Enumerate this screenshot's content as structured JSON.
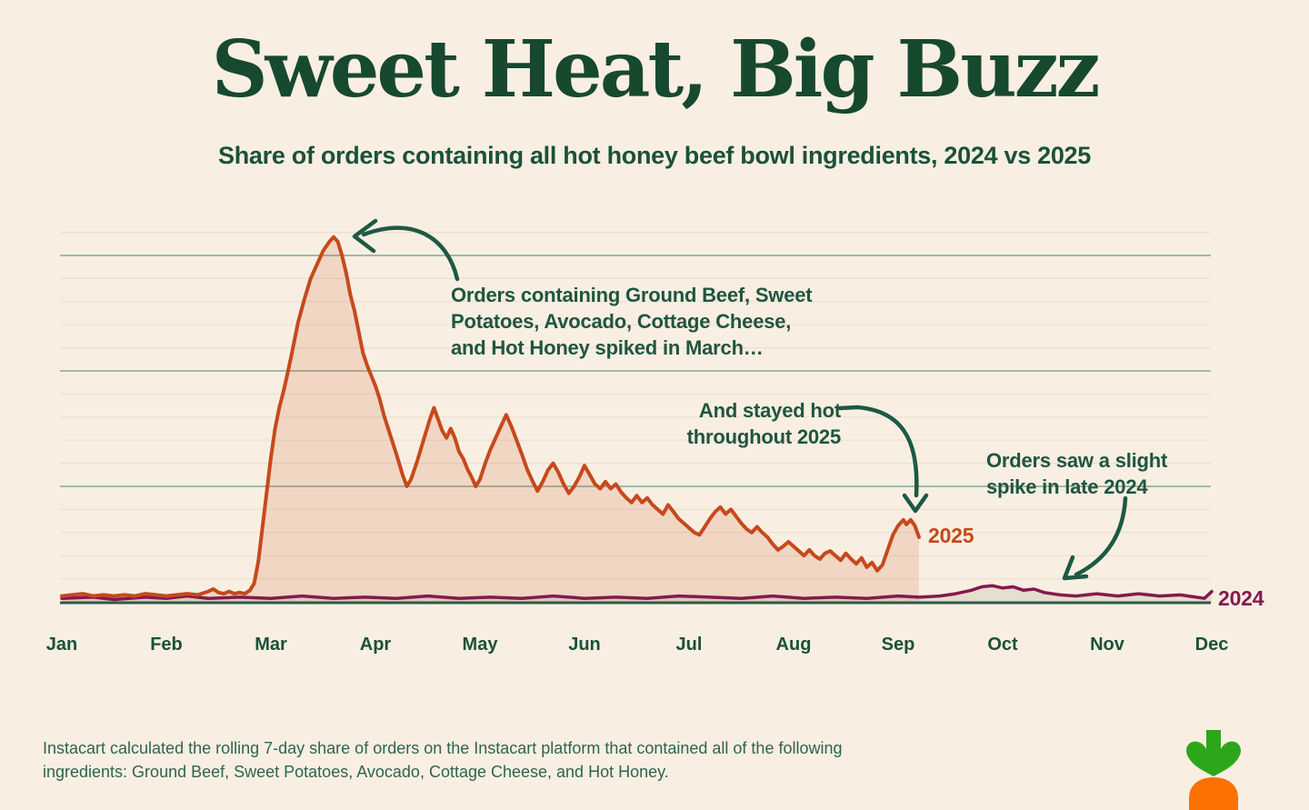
{
  "page": {
    "background": "#F8EFE2"
  },
  "header": {
    "title": "Sweet Heat, Big Buzz",
    "subtitle": "Share of orders containing all hot honey beef bowl ingredients, 2024 vs 2025"
  },
  "chart_data": {
    "type": "area",
    "title": "Share of orders containing all hot honey beef bowl ingredients, 2024 vs 2025",
    "x_axis": {
      "categories": [
        "Jan",
        "Feb",
        "Mar",
        "Apr",
        "May",
        "Jun",
        "Jul",
        "Aug",
        "Sep",
        "Oct",
        "Nov",
        "Dec"
      ],
      "range_months": [
        0,
        11
      ]
    },
    "y_axis": {
      "labels_shown": false,
      "units": "relative order share (axis unlabeled); 1.0 = one major gridline division",
      "max": 3.2,
      "minor_gridline_step": 0.2,
      "major_gridlines_units": [
        1,
        2,
        3
      ]
    },
    "grid": {
      "major_color": "#A2B9A9",
      "minor_color": "#ECE0CF",
      "baseline_color": "#2D5B49"
    },
    "legend_position": "inline-end-of-line labels",
    "series": [
      {
        "name": "2025",
        "label": "2025",
        "color": "#C6491D",
        "fill": "rgba(198,73,29,0.15)",
        "stroke_width": 4,
        "points": [
          [
            0,
            0.05
          ],
          [
            0.1,
            0.06
          ],
          [
            0.2,
            0.07
          ],
          [
            0.3,
            0.05
          ],
          [
            0.4,
            0.06
          ],
          [
            0.5,
            0.05
          ],
          [
            0.6,
            0.06
          ],
          [
            0.7,
            0.05
          ],
          [
            0.8,
            0.07
          ],
          [
            0.9,
            0.06
          ],
          [
            1.0,
            0.05
          ],
          [
            1.1,
            0.06
          ],
          [
            1.2,
            0.07
          ],
          [
            1.3,
            0.06
          ],
          [
            1.4,
            0.09
          ],
          [
            1.45,
            0.11
          ],
          [
            1.5,
            0.08
          ],
          [
            1.55,
            0.07
          ],
          [
            1.6,
            0.09
          ],
          [
            1.65,
            0.07
          ],
          [
            1.7,
            0.08
          ],
          [
            1.75,
            0.07
          ],
          [
            1.8,
            0.1
          ],
          [
            1.84,
            0.16
          ],
          [
            1.88,
            0.35
          ],
          [
            1.92,
            0.65
          ],
          [
            1.96,
            0.95
          ],
          [
            2.0,
            1.25
          ],
          [
            2.04,
            1.5
          ],
          [
            2.08,
            1.68
          ],
          [
            2.12,
            1.82
          ],
          [
            2.16,
            1.98
          ],
          [
            2.2,
            2.15
          ],
          [
            2.26,
            2.42
          ],
          [
            2.32,
            2.62
          ],
          [
            2.38,
            2.8
          ],
          [
            2.44,
            2.92
          ],
          [
            2.5,
            3.04
          ],
          [
            2.56,
            3.12
          ],
          [
            2.6,
            3.16
          ],
          [
            2.64,
            3.12
          ],
          [
            2.68,
            3.0
          ],
          [
            2.72,
            2.85
          ],
          [
            2.76,
            2.66
          ],
          [
            2.8,
            2.52
          ],
          [
            2.84,
            2.34
          ],
          [
            2.88,
            2.16
          ],
          [
            2.92,
            2.05
          ],
          [
            2.96,
            1.96
          ],
          [
            3.0,
            1.87
          ],
          [
            3.04,
            1.76
          ],
          [
            3.08,
            1.62
          ],
          [
            3.14,
            1.45
          ],
          [
            3.2,
            1.28
          ],
          [
            3.26,
            1.1
          ],
          [
            3.3,
            1.0
          ],
          [
            3.34,
            1.06
          ],
          [
            3.4,
            1.22
          ],
          [
            3.46,
            1.4
          ],
          [
            3.52,
            1.58
          ],
          [
            3.56,
            1.68
          ],
          [
            3.6,
            1.58
          ],
          [
            3.64,
            1.48
          ],
          [
            3.68,
            1.42
          ],
          [
            3.72,
            1.5
          ],
          [
            3.76,
            1.42
          ],
          [
            3.8,
            1.3
          ],
          [
            3.84,
            1.24
          ],
          [
            3.88,
            1.15
          ],
          [
            3.92,
            1.08
          ],
          [
            3.96,
            1.0
          ],
          [
            4.0,
            1.06
          ],
          [
            4.05,
            1.2
          ],
          [
            4.1,
            1.32
          ],
          [
            4.15,
            1.42
          ],
          [
            4.2,
            1.52
          ],
          [
            4.25,
            1.62
          ],
          [
            4.3,
            1.52
          ],
          [
            4.35,
            1.4
          ],
          [
            4.4,
            1.28
          ],
          [
            4.45,
            1.15
          ],
          [
            4.5,
            1.05
          ],
          [
            4.55,
            0.96
          ],
          [
            4.6,
            1.04
          ],
          [
            4.65,
            1.14
          ],
          [
            4.7,
            1.2
          ],
          [
            4.75,
            1.12
          ],
          [
            4.8,
            1.02
          ],
          [
            4.85,
            0.94
          ],
          [
            4.9,
            1.0
          ],
          [
            4.95,
            1.08
          ],
          [
            5.0,
            1.18
          ],
          [
            5.05,
            1.1
          ],
          [
            5.1,
            1.02
          ],
          [
            5.15,
            0.98
          ],
          [
            5.2,
            1.04
          ],
          [
            5.25,
            0.98
          ],
          [
            5.3,
            1.02
          ],
          [
            5.35,
            0.95
          ],
          [
            5.4,
            0.9
          ],
          [
            5.45,
            0.86
          ],
          [
            5.5,
            0.92
          ],
          [
            5.55,
            0.86
          ],
          [
            5.6,
            0.9
          ],
          [
            5.65,
            0.84
          ],
          [
            5.7,
            0.8
          ],
          [
            5.75,
            0.76
          ],
          [
            5.8,
            0.84
          ],
          [
            5.85,
            0.78
          ],
          [
            5.9,
            0.72
          ],
          [
            5.95,
            0.68
          ],
          [
            6.0,
            0.64
          ],
          [
            6.05,
            0.6
          ],
          [
            6.1,
            0.58
          ],
          [
            6.15,
            0.65
          ],
          [
            6.2,
            0.72
          ],
          [
            6.25,
            0.78
          ],
          [
            6.3,
            0.82
          ],
          [
            6.35,
            0.76
          ],
          [
            6.4,
            0.8
          ],
          [
            6.45,
            0.74
          ],
          [
            6.5,
            0.68
          ],
          [
            6.55,
            0.63
          ],
          [
            6.6,
            0.6
          ],
          [
            6.65,
            0.65
          ],
          [
            6.7,
            0.6
          ],
          [
            6.75,
            0.56
          ],
          [
            6.8,
            0.5
          ],
          [
            6.85,
            0.45
          ],
          [
            6.9,
            0.48
          ],
          [
            6.95,
            0.52
          ],
          [
            7.0,
            0.48
          ],
          [
            7.05,
            0.44
          ],
          [
            7.1,
            0.4
          ],
          [
            7.15,
            0.45
          ],
          [
            7.2,
            0.4
          ],
          [
            7.25,
            0.37
          ],
          [
            7.3,
            0.42
          ],
          [
            7.35,
            0.44
          ],
          [
            7.4,
            0.4
          ],
          [
            7.45,
            0.36
          ],
          [
            7.5,
            0.42
          ],
          [
            7.55,
            0.37
          ],
          [
            7.6,
            0.33
          ],
          [
            7.65,
            0.38
          ],
          [
            7.7,
            0.3
          ],
          [
            7.75,
            0.34
          ],
          [
            7.8,
            0.27
          ],
          [
            7.85,
            0.32
          ],
          [
            7.9,
            0.45
          ],
          [
            7.95,
            0.58
          ],
          [
            8.0,
            0.66
          ],
          [
            8.05,
            0.71
          ],
          [
            8.08,
            0.67
          ],
          [
            8.12,
            0.71
          ],
          [
            8.16,
            0.66
          ],
          [
            8.2,
            0.56
          ]
        ]
      },
      {
        "name": "2024",
        "label": "2024",
        "color": "#85194F",
        "fill": "rgba(90,110,85,0.13)",
        "stroke_width": 3.5,
        "points": [
          [
            0,
            0.03
          ],
          [
            0.3,
            0.04
          ],
          [
            0.5,
            0.02
          ],
          [
            0.8,
            0.04
          ],
          [
            1.0,
            0.03
          ],
          [
            1.2,
            0.05
          ],
          [
            1.4,
            0.03
          ],
          [
            1.7,
            0.04
          ],
          [
            2.0,
            0.03
          ],
          [
            2.3,
            0.05
          ],
          [
            2.6,
            0.03
          ],
          [
            2.9,
            0.04
          ],
          [
            3.2,
            0.03
          ],
          [
            3.5,
            0.05
          ],
          [
            3.8,
            0.03
          ],
          [
            4.1,
            0.04
          ],
          [
            4.4,
            0.03
          ],
          [
            4.7,
            0.05
          ],
          [
            5.0,
            0.03
          ],
          [
            5.3,
            0.04
          ],
          [
            5.6,
            0.03
          ],
          [
            5.9,
            0.05
          ],
          [
            6.2,
            0.04
          ],
          [
            6.5,
            0.03
          ],
          [
            6.8,
            0.05
          ],
          [
            7.1,
            0.03
          ],
          [
            7.4,
            0.04
          ],
          [
            7.7,
            0.03
          ],
          [
            8.0,
            0.05
          ],
          [
            8.2,
            0.04
          ],
          [
            8.4,
            0.05
          ],
          [
            8.55,
            0.07
          ],
          [
            8.7,
            0.1
          ],
          [
            8.8,
            0.13
          ],
          [
            8.9,
            0.14
          ],
          [
            9.0,
            0.12
          ],
          [
            9.1,
            0.13
          ],
          [
            9.2,
            0.1
          ],
          [
            9.3,
            0.11
          ],
          [
            9.4,
            0.08
          ],
          [
            9.55,
            0.06
          ],
          [
            9.7,
            0.05
          ],
          [
            9.9,
            0.07
          ],
          [
            10.1,
            0.05
          ],
          [
            10.3,
            0.07
          ],
          [
            10.5,
            0.05
          ],
          [
            10.7,
            0.06
          ],
          [
            10.85,
            0.04
          ],
          [
            10.93,
            0.03
          ],
          [
            11.0,
            0.09
          ]
        ]
      }
    ],
    "annotations_note": "2025 series peaks in late March and ends mid-September; 2024 series is nearly flat with a small bump in October"
  },
  "annotations": {
    "march_spike": {
      "text": "Orders containing Ground Beef, Sweet\nPotatoes, Avocado, Cottage Cheese,\nand Hot Honey spiked in March…"
    },
    "stayed_hot": {
      "text": "And stayed hot\nthroughout 2025"
    },
    "late_2024": {
      "text": "Orders saw a slight\nspike in late 2024"
    }
  },
  "footnote": {
    "text": "Instacart calculated the rolling 7-day share of orders on the Instacart platform that contained all of the following\ningredients: Ground Beef, Sweet Potatoes, Avocado, Cottage Cheese, and Hot Honey."
  },
  "logo": {
    "name": "Instacart carrot logo",
    "leaf_color": "#2EA61B",
    "carrot_color": "#FB7203"
  },
  "colors": {
    "background": "#F8EFE2",
    "title_green": "#17492F",
    "text_green": "#1F5540",
    "arrow_green": "#1D5944",
    "series_2025": "#C6491D",
    "series_2024": "#85194F"
  }
}
